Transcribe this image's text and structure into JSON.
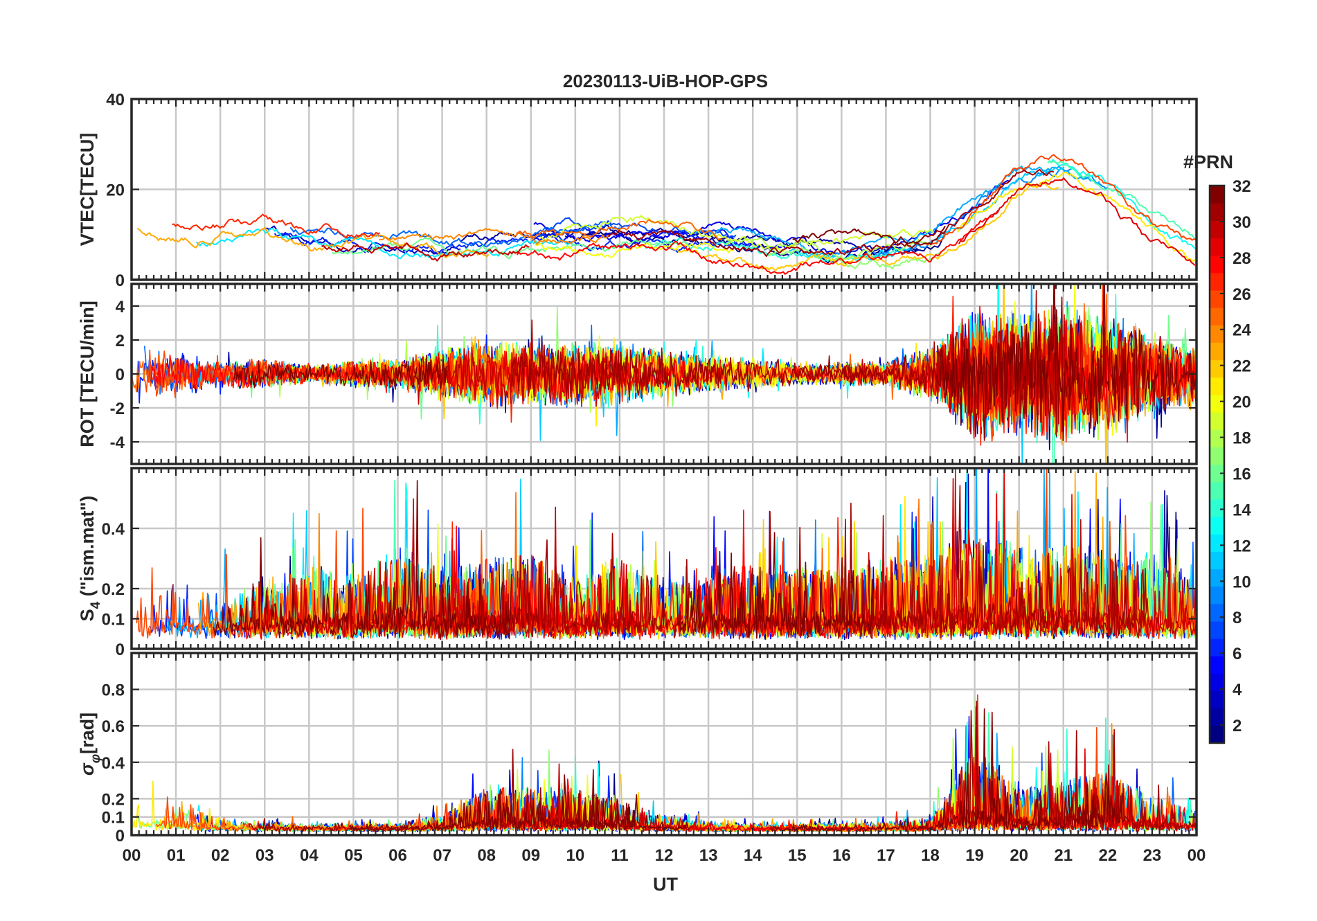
{
  "chart_data": {
    "type": "line",
    "title": "20230113-UiB-HOP-GPS",
    "xlabel": "UT",
    "x_range_hours": [
      0,
      24
    ],
    "x_tick_labels": [
      "00",
      "01",
      "02",
      "03",
      "04",
      "05",
      "06",
      "07",
      "08",
      "09",
      "10",
      "11",
      "12",
      "13",
      "14",
      "15",
      "16",
      "17",
      "18",
      "19",
      "20",
      "21",
      "22",
      "23",
      "00"
    ],
    "grid": true,
    "colorbar": {
      "title": "#PRN",
      "range": [
        1,
        32
      ],
      "tick_labels": [
        "2",
        "4",
        "6",
        "8",
        "10",
        "12",
        "14",
        "16",
        "18",
        "20",
        "22",
        "24",
        "26",
        "28",
        "30",
        "32"
      ],
      "colormap": "jet",
      "colors": [
        "#00008f",
        "#0000ff",
        "#0080ff",
        "#00ffff",
        "#80ff80",
        "#ffff00",
        "#ff8000",
        "#ff0000",
        "#800000"
      ]
    },
    "panels": [
      {
        "id": "vtec",
        "ylabel": "VTEC[TECU]",
        "ylim": [
          0,
          40
        ],
        "y_ticks": [
          0,
          20,
          40
        ],
        "y_tick_labels": [
          "0",
          "20",
          "40"
        ],
        "trend_hours": [
          0,
          1,
          2,
          3,
          4,
          5,
          6,
          7,
          8,
          9,
          10,
          11,
          12,
          13,
          14,
          15,
          16,
          17,
          18,
          19,
          20,
          21,
          22,
          23,
          24
        ],
        "trend_values": [
          13,
          9,
          11,
          12,
          9,
          8,
          8,
          7,
          8,
          9,
          9,
          9,
          8,
          8,
          7,
          6,
          5,
          6,
          8,
          15,
          22,
          24,
          20,
          12,
          6
        ],
        "series_spread": 5,
        "noise": 1.2
      },
      {
        "id": "rot",
        "ylabel": "ROT [TECU/min]",
        "ylim": [
          -5.3,
          5.3
        ],
        "y_ticks": [
          -4,
          -2,
          0,
          2,
          4
        ],
        "y_tick_labels": [
          "-4",
          "-2",
          "0",
          "2",
          "4"
        ],
        "activity_hours": [
          0,
          1,
          2,
          3,
          4,
          5,
          6,
          7,
          8,
          9,
          10,
          11,
          12,
          13,
          14,
          15,
          16,
          17,
          18,
          19,
          20,
          21,
          22,
          23,
          24
        ],
        "activity_values": [
          1.5,
          1.2,
          0.7,
          0.8,
          0.5,
          0.7,
          0.8,
          1.3,
          1.8,
          1.6,
          1.8,
          1.6,
          1.3,
          1.0,
          0.8,
          0.6,
          0.6,
          0.7,
          1.4,
          3.5,
          3.2,
          3.6,
          3.2,
          2.2,
          1.6
        ]
      },
      {
        "id": "s4",
        "ylabel": "S4 (\"ism.mat\")",
        "ylim": [
          0,
          0.6
        ],
        "y_ticks": [
          0,
          0.1,
          0.2,
          0.4
        ],
        "y_tick_labels": [
          "0",
          "0.1",
          "0.2",
          "0.4"
        ],
        "activity_hours": [
          0,
          1,
          2,
          3,
          4,
          5,
          6,
          7,
          8,
          9,
          10,
          11,
          12,
          13,
          14,
          15,
          16,
          17,
          18,
          19,
          20,
          21,
          22,
          23,
          24
        ],
        "activity_values": [
          0.14,
          0.18,
          0.16,
          0.2,
          0.24,
          0.2,
          0.32,
          0.22,
          0.26,
          0.3,
          0.2,
          0.28,
          0.2,
          0.24,
          0.24,
          0.24,
          0.24,
          0.26,
          0.28,
          0.36,
          0.32,
          0.32,
          0.3,
          0.28,
          0.2
        ],
        "baseline": 0.05
      },
      {
        "id": "sigma_phi",
        "ylabel": "σφ[rad]",
        "ylim": [
          0,
          1.0
        ],
        "y_ticks": [
          0,
          0.1,
          0.2,
          0.4,
          0.6,
          0.8
        ],
        "y_tick_labels": [
          "0",
          "0.1",
          "0.2",
          "0.4",
          "0.6",
          "0.8"
        ],
        "activity_hours": [
          0,
          1,
          2,
          3,
          4,
          5,
          6,
          7,
          8,
          9,
          10,
          11,
          12,
          13,
          14,
          15,
          16,
          17,
          18,
          19,
          20,
          21,
          22,
          23,
          24
        ],
        "activity_values": [
          0.18,
          0.2,
          0.06,
          0.05,
          0.03,
          0.03,
          0.04,
          0.08,
          0.25,
          0.25,
          0.25,
          0.18,
          0.08,
          0.04,
          0.03,
          0.03,
          0.03,
          0.05,
          0.06,
          0.5,
          0.25,
          0.3,
          0.35,
          0.2,
          0.12
        ],
        "baseline": 0.03
      }
    ],
    "series_count": 32
  }
}
